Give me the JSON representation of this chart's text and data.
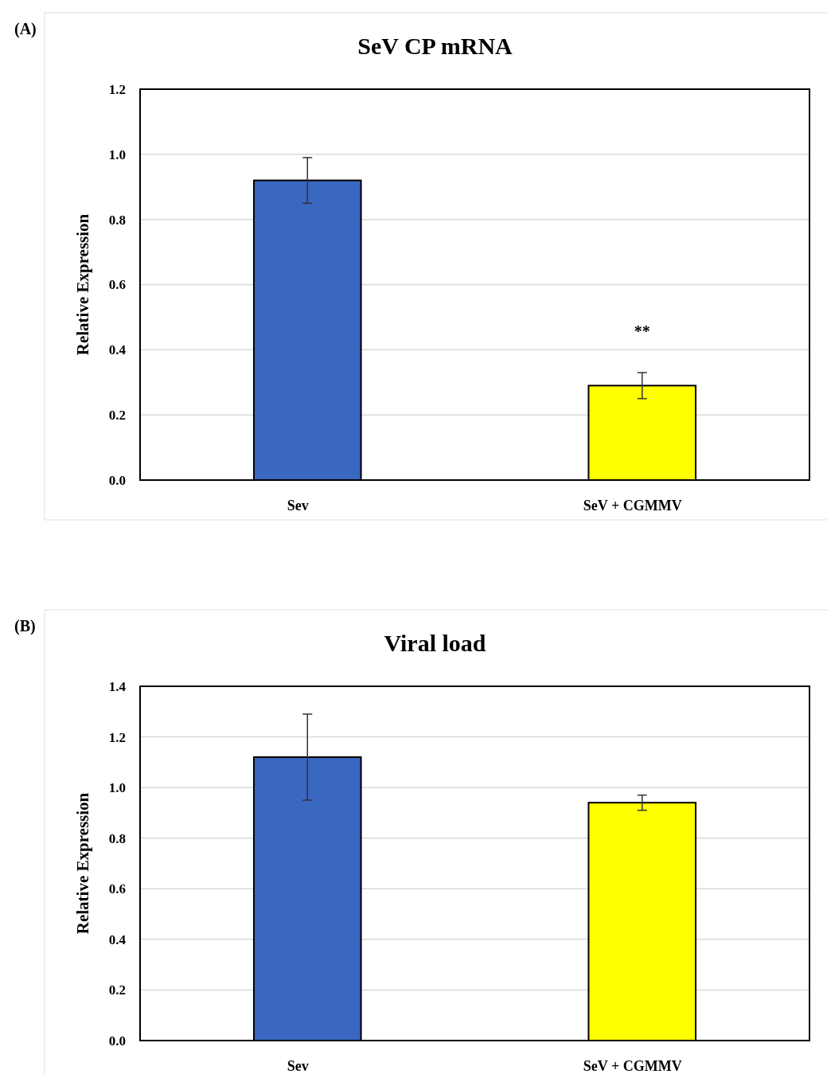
{
  "chart_data": [
    {
      "type": "bar",
      "title": "SeV CP mRNA",
      "ylabel": "Relative Expression",
      "categories": [
        "Sev",
        "SeV + CGMMV"
      ],
      "values": [
        0.92,
        0.29
      ],
      "errors": [
        0.07,
        0.04
      ],
      "colors": [
        "#3a67c0",
        "#ffff00"
      ],
      "ylim": [
        0,
        1.2
      ],
      "yticks": [
        {
          "value": 0,
          "label": "0.0"
        },
        {
          "value": 0.2,
          "label": "0.2"
        },
        {
          "value": 0.4,
          "label": "0.4"
        },
        {
          "value": 0.6,
          "label": "0.6"
        },
        {
          "value": 0.8,
          "label": "0.8"
        },
        {
          "value": 1,
          "label": "1.0"
        },
        {
          "value": 1.2,
          "label": "1.2"
        }
      ],
      "grid": "y",
      "annotations": [
        "(A)",
        "**"
      ]
    },
    {
      "type": "bar",
      "title": "Viral load",
      "ylabel": "Relative Expression",
      "categories": [
        "Sev",
        "SeV + CGMMV"
      ],
      "values": [
        1.12,
        0.94
      ],
      "errors": [
        0.17,
        0.03
      ],
      "colors": [
        "#3a67c0",
        "#ffff00"
      ],
      "ylim": [
        0,
        1.4
      ],
      "yticks": [
        {
          "value": 0,
          "label": "0.0"
        },
        {
          "value": 0.2,
          "label": "0.2"
        },
        {
          "value": 0.4,
          "label": "0.4"
        },
        {
          "value": 0.6,
          "label": "0.6"
        },
        {
          "value": 0.8,
          "label": "0.8"
        },
        {
          "value": 1,
          "label": "1.0"
        },
        {
          "value": 1.2,
          "label": "1.2"
        },
        {
          "value": 1.4,
          "label": "1.4"
        }
      ],
      "grid": "y",
      "annotations": [
        "(B)"
      ]
    }
  ]
}
